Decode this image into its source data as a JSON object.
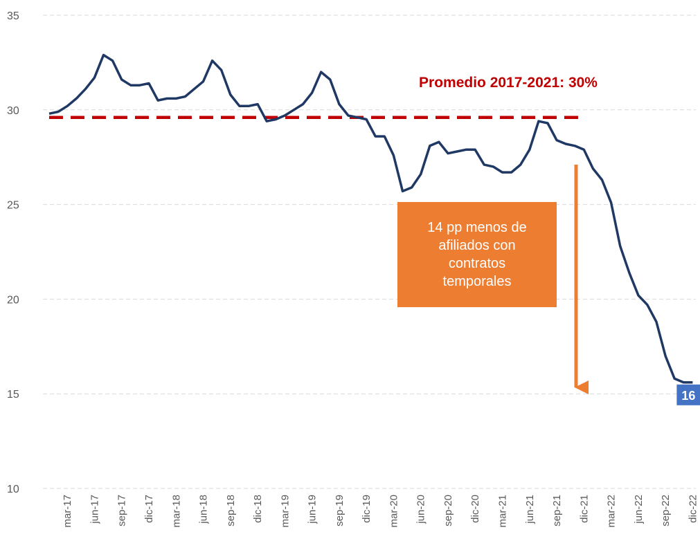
{
  "chart_data": {
    "type": "line",
    "categories": [
      null,
      null,
      "mar-17",
      null,
      null,
      "jun-17",
      null,
      null,
      "sep-17",
      null,
      null,
      "dic-17",
      null,
      null,
      "mar-18",
      null,
      null,
      "jun-18",
      null,
      null,
      "sep-18",
      null,
      null,
      "dic-18",
      null,
      null,
      "mar-19",
      null,
      null,
      "jun-19",
      null,
      null,
      "sep-19",
      null,
      null,
      "dic-19",
      null,
      null,
      "mar-20",
      null,
      null,
      "jun-20",
      null,
      null,
      "sep-20",
      null,
      null,
      "dic-20",
      null,
      null,
      "mar-21",
      null,
      null,
      "jun-21",
      null,
      null,
      "sep-21",
      null,
      null,
      "dic-21",
      null,
      null,
      "mar-22",
      null,
      null,
      "jun-22",
      null,
      null,
      "sep-22",
      null,
      null,
      "dic-22"
    ],
    "series": [
      {
        "color": "#1f3864",
        "values": [
          29.8,
          29.9,
          30.2,
          30.6,
          31.1,
          31.7,
          32.9,
          32.6,
          31.6,
          31.3,
          31.3,
          31.4,
          30.5,
          30.6,
          30.6,
          30.7,
          31.1,
          31.5,
          32.6,
          32.1,
          30.8,
          30.2,
          30.2,
          30.3,
          29.4,
          29.5,
          29.7,
          30.0,
          30.3,
          30.9,
          32.0,
          31.6,
          30.3,
          29.7,
          29.6,
          29.5,
          28.6,
          28.6,
          27.6,
          25.7,
          25.9,
          26.6,
          28.1,
          28.3,
          27.7,
          27.8,
          27.9,
          27.9,
          27.1,
          27.0,
          26.7,
          26.7,
          27.1,
          27.9,
          29.4,
          29.3,
          28.4,
          28.2,
          28.1,
          27.9,
          26.9,
          26.3,
          25.1,
          22.8,
          21.4,
          20.2,
          19.7,
          18.8,
          17.0,
          15.8,
          15.6,
          15.6
        ],
        "value_labels": [
          null,
          null,
          null,
          null,
          null,
          null,
          null,
          null,
          null,
          null,
          null,
          null,
          null,
          null,
          null,
          null,
          null,
          null,
          null,
          null,
          null,
          null,
          null,
          null,
          null,
          null,
          null,
          null,
          null,
          null,
          null,
          null,
          null,
          null,
          null,
          null,
          null,
          null,
          null,
          null,
          null,
          null,
          null,
          null,
          null,
          null,
          null,
          null,
          null,
          null,
          null,
          null,
          null,
          null,
          null,
          null,
          null,
          null,
          null,
          null,
          null,
          null,
          null,
          null,
          null,
          null,
          null,
          null,
          null,
          null,
          null,
          "16"
        ]
      }
    ],
    "reference_line": {
      "label": "Promedio 2017-2021: 30%",
      "value": 29.6,
      "color": "#c00000"
    },
    "annotation": "14 pp menos de afiliados con contratos temporales",
    "ylim": [
      10,
      35
    ],
    "yticks": [
      10,
      15,
      20,
      25,
      30,
      35
    ],
    "grid": true
  }
}
